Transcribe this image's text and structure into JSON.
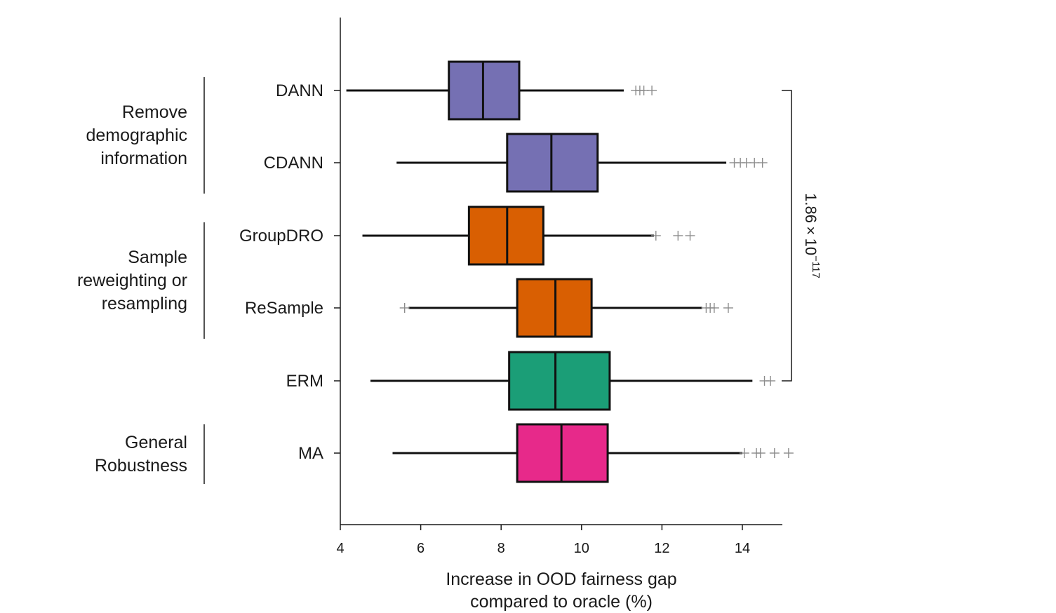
{
  "chart_data": {
    "type": "boxplot",
    "orientation": "horizontal",
    "xlabel_lines": [
      "Increase in OOD fairness gap",
      "compared to oracle (%)"
    ],
    "xlim": [
      4,
      15
    ],
    "xticks": [
      4,
      6,
      8,
      10,
      12,
      14
    ],
    "xtick_labels": [
      "4",
      "6",
      "8",
      "10",
      "12",
      "14"
    ],
    "categories": [
      "DANN",
      "CDANN",
      "GroupDRO",
      "ReSample",
      "ERM",
      "MA"
    ],
    "boxes": [
      {
        "label": "DANN",
        "whisker_low": 4.15,
        "q1": 6.7,
        "median": 7.55,
        "q3": 8.45,
        "whisker_high": 11.05,
        "outliers": [
          11.35,
          11.45,
          11.55,
          11.75
        ],
        "color": "#7570b3"
      },
      {
        "label": "CDANN",
        "whisker_low": 5.4,
        "q1": 8.15,
        "median": 9.25,
        "q3": 10.4,
        "whisker_high": 13.6,
        "outliers": [
          13.8,
          13.95,
          14.1,
          14.3,
          14.5
        ],
        "color": "#7570b3"
      },
      {
        "label": "GroupDRO",
        "whisker_low": 4.55,
        "q1": 7.2,
        "median": 8.15,
        "q3": 9.05,
        "whisker_high": 11.8,
        "outliers": [
          11.85,
          12.4,
          12.7
        ],
        "color": "#d95f02"
      },
      {
        "label": "ReSample",
        "whisker_low": 5.7,
        "q1": 8.4,
        "median": 9.35,
        "q3": 10.25,
        "whisker_high": 13.0,
        "outliers": [
          5.6,
          13.1,
          13.2,
          13.3,
          13.65
        ],
        "color": "#d95f02"
      },
      {
        "label": "ERM",
        "whisker_low": 4.75,
        "q1": 8.2,
        "median": 9.35,
        "q3": 10.7,
        "whisker_high": 14.25,
        "outliers": [
          14.55,
          14.7
        ],
        "color": "#1b9e77"
      },
      {
        "label": "MA",
        "whisker_low": 5.3,
        "q1": 8.4,
        "median": 9.5,
        "q3": 10.65,
        "whisker_high": 14.0,
        "outliers": [
          14.05,
          14.35,
          14.45,
          14.8,
          15.15
        ],
        "color": "#e7298a"
      }
    ],
    "groups": [
      {
        "lines": [
          "Remove",
          "demographic",
          "information"
        ],
        "members": [
          "DANN",
          "CDANN"
        ]
      },
      {
        "lines": [
          "Sample",
          "reweighting or",
          "resampling"
        ],
        "members": [
          "GroupDRO",
          "ReSample"
        ]
      },
      {
        "lines": [
          "General",
          "Robustness"
        ],
        "members": [
          "MA"
        ]
      }
    ],
    "annotation": {
      "base": "1.86 × 10",
      "exponent": "−117",
      "from": "DANN",
      "to": "ERM"
    }
  }
}
